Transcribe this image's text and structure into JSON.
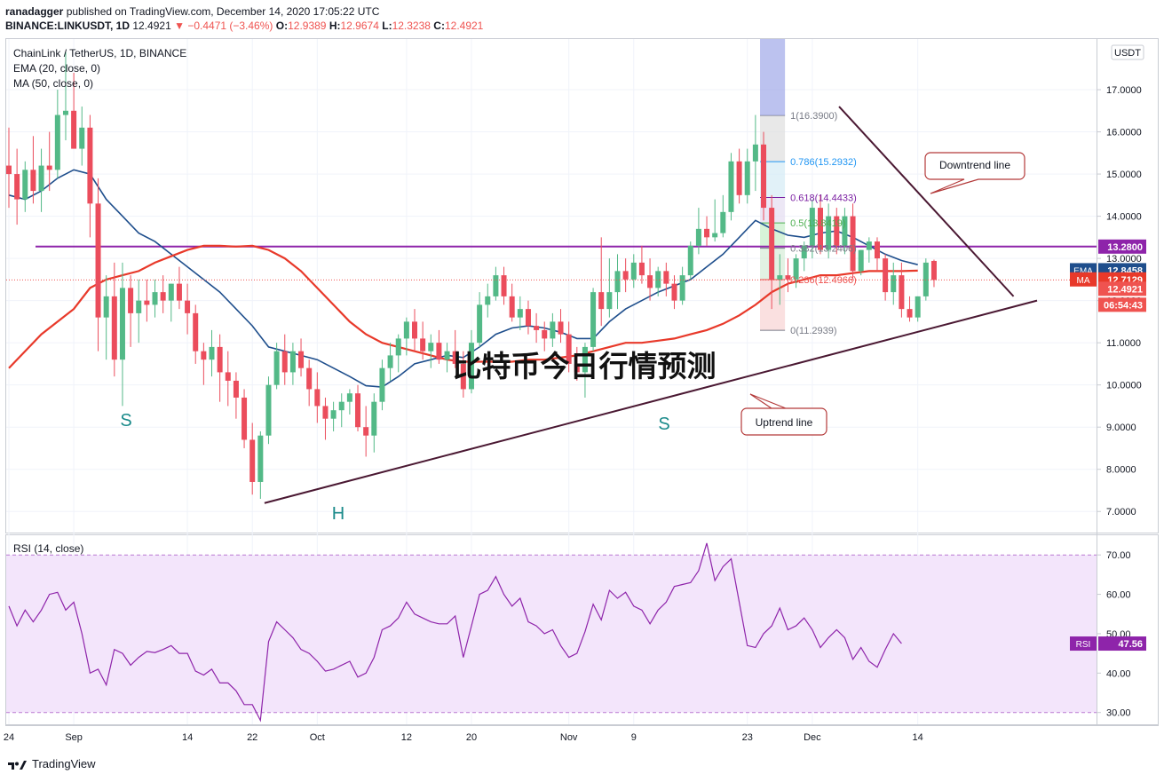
{
  "header": {
    "publisher": "ranadagger",
    "published_text": "published on TradingView.com, December 14, 2020 17:05:22 UTC",
    "symbol": "BINANCE:LINKUSDT, 1D",
    "last": "12.4921",
    "change": "−0.4471 (−3.46%)",
    "o_label": "O:",
    "o": "12.9389",
    "h_label": "H:",
    "h": "12.9674",
    "l_label": "L:",
    "l": "12.3238",
    "c_label": "C:",
    "c": "12.4921"
  },
  "legend": {
    "title": "ChainLink / TetherUS, 1D, BINANCE",
    "ema": "EMA (20, close, 0)",
    "ma": "MA (50, close, 0)",
    "rsi": "RSI (14, close)"
  },
  "currency": "USDT",
  "watermark": "比特币今日行情预测",
  "footer_logo": "TradingView",
  "colors": {
    "up": "#53b987",
    "down": "#eb4d5c",
    "ema": "#1e4e8c",
    "ma": "#e8392a",
    "horizontal": "#8e24aa",
    "trendline": "#4a1832",
    "rsi_line": "#8e24aa",
    "rsi_band": "#f3e5fb",
    "callout": "#b33939",
    "pattern_label": "#1a8a8a"
  },
  "chart_data": {
    "type": "candlestick",
    "y_range": [
      6.5,
      18.2
    ],
    "price_ticks": [
      "17.0000",
      "16.0000",
      "15.0000",
      "14.0000",
      "13.0000",
      "12.0000",
      "11.0000",
      "10.0000",
      "9.0000",
      "8.0000",
      "7.0000"
    ],
    "time_labels": [
      {
        "t": 0,
        "label": "24"
      },
      {
        "t": 8,
        "label": "Sep"
      },
      {
        "t": 22,
        "label": "14"
      },
      {
        "t": 30,
        "label": "22"
      },
      {
        "t": 38,
        "label": "Oct"
      },
      {
        "t": 49,
        "label": "12"
      },
      {
        "t": 57,
        "label": "20"
      },
      {
        "t": 69,
        "label": "Nov"
      },
      {
        "t": 77,
        "label": "9"
      },
      {
        "t": 91,
        "label": "23"
      },
      {
        "t": 99,
        "label": "Dec"
      },
      {
        "t": 112,
        "label": "14"
      }
    ],
    "candles": [
      [
        15.2,
        16.1,
        14.2,
        15.0
      ],
      [
        15.0,
        15.6,
        13.8,
        14.4
      ],
      [
        14.4,
        15.3,
        14.1,
        15.1
      ],
      [
        15.1,
        15.9,
        14.3,
        14.6
      ],
      [
        14.6,
        15.6,
        14.1,
        15.2
      ],
      [
        15.2,
        16.0,
        14.6,
        15.1
      ],
      [
        15.1,
        17.0,
        14.9,
        16.4
      ],
      [
        16.4,
        17.9,
        15.8,
        16.5
      ],
      [
        16.5,
        17.4,
        15.6,
        15.6
      ],
      [
        15.6,
        16.6,
        15.2,
        16.1
      ],
      [
        16.1,
        16.4,
        13.5,
        14.3
      ],
      [
        14.3,
        14.9,
        10.8,
        11.6
      ],
      [
        11.6,
        12.6,
        10.6,
        12.1
      ],
      [
        12.1,
        12.9,
        10.2,
        10.6
      ],
      [
        10.6,
        12.9,
        9.5,
        12.3
      ],
      [
        12.3,
        12.6,
        10.9,
        11.7
      ],
      [
        11.7,
        12.5,
        11.0,
        12.0
      ],
      [
        12.0,
        12.5,
        11.5,
        11.9
      ],
      [
        11.9,
        12.5,
        11.6,
        12.2
      ],
      [
        12.2,
        12.6,
        11.7,
        12.0
      ],
      [
        12.0,
        12.4,
        11.5,
        12.4
      ],
      [
        12.4,
        12.8,
        11.8,
        12.0
      ],
      [
        12.0,
        12.4,
        11.2,
        11.7
      ],
      [
        11.7,
        11.9,
        10.5,
        10.8
      ],
      [
        10.8,
        11.0,
        10.0,
        10.6
      ],
      [
        10.6,
        11.3,
        10.2,
        10.9
      ],
      [
        10.9,
        11.2,
        9.6,
        10.3
      ],
      [
        10.3,
        10.8,
        9.5,
        10.1
      ],
      [
        10.1,
        10.3,
        9.2,
        9.7
      ],
      [
        9.7,
        9.9,
        8.5,
        8.7
      ],
      [
        8.7,
        9.1,
        7.4,
        7.7
      ],
      [
        7.7,
        8.9,
        7.3,
        8.8
      ],
      [
        8.8,
        10.2,
        8.6,
        10.0
      ],
      [
        10.0,
        11.0,
        9.9,
        10.8
      ],
      [
        10.8,
        11.2,
        10.0,
        10.3
      ],
      [
        10.3,
        11.0,
        10.0,
        10.8
      ],
      [
        10.8,
        11.1,
        10.2,
        10.4
      ],
      [
        10.4,
        10.6,
        9.5,
        9.9
      ],
      [
        9.9,
        10.3,
        9.1,
        9.5
      ],
      [
        9.5,
        9.7,
        8.7,
        9.2
      ],
      [
        9.2,
        9.6,
        8.9,
        9.4
      ],
      [
        9.4,
        9.8,
        9.0,
        9.6
      ],
      [
        9.6,
        9.9,
        9.3,
        9.8
      ],
      [
        9.8,
        10.0,
        8.9,
        9.0
      ],
      [
        9.0,
        9.5,
        8.3,
        8.8
      ],
      [
        8.8,
        9.8,
        8.4,
        9.6
      ],
      [
        9.6,
        10.6,
        9.4,
        10.4
      ],
      [
        10.4,
        11.0,
        10.1,
        10.7
      ],
      [
        10.7,
        11.2,
        10.3,
        11.1
      ],
      [
        11.1,
        11.6,
        10.7,
        11.5
      ],
      [
        11.5,
        11.8,
        10.8,
        11.1
      ],
      [
        11.1,
        11.5,
        10.6,
        10.8
      ],
      [
        10.8,
        11.2,
        10.4,
        11.0
      ],
      [
        11.0,
        11.3,
        10.5,
        10.6
      ],
      [
        10.6,
        11.0,
        10.3,
        10.8
      ],
      [
        10.8,
        11.3,
        10.4,
        10.5
      ],
      [
        10.5,
        10.8,
        9.7,
        9.9
      ],
      [
        9.9,
        11.3,
        9.8,
        11.0
      ],
      [
        11.0,
        12.2,
        10.9,
        11.9
      ],
      [
        11.9,
        12.4,
        11.6,
        12.1
      ],
      [
        12.1,
        12.8,
        12.0,
        12.6
      ],
      [
        12.6,
        12.8,
        11.9,
        12.1
      ],
      [
        12.1,
        12.4,
        11.5,
        11.6
      ],
      [
        11.6,
        12.1,
        11.3,
        11.8
      ],
      [
        11.8,
        12.0,
        11.2,
        11.4
      ],
      [
        11.4,
        11.7,
        11.0,
        11.3
      ],
      [
        11.3,
        11.5,
        10.8,
        11.1
      ],
      [
        11.1,
        11.7,
        10.9,
        11.5
      ],
      [
        11.5,
        11.8,
        11.0,
        11.2
      ],
      [
        11.2,
        11.5,
        10.3,
        10.5
      ],
      [
        10.5,
        10.9,
        10.1,
        10.3
      ],
      [
        10.3,
        11.0,
        9.7,
        10.9
      ],
      [
        10.9,
        12.3,
        10.8,
        12.2
      ],
      [
        12.2,
        13.5,
        11.4,
        11.8
      ],
      [
        11.8,
        13.0,
        11.6,
        12.2
      ],
      [
        12.2,
        13.1,
        11.8,
        12.7
      ],
      [
        12.7,
        13.0,
        12.2,
        12.5
      ],
      [
        12.5,
        13.1,
        12.3,
        12.9
      ],
      [
        12.9,
        13.3,
        12.4,
        12.6
      ],
      [
        12.6,
        13.0,
        12.0,
        12.3
      ],
      [
        12.3,
        12.8,
        12.1,
        12.7
      ],
      [
        12.7,
        12.9,
        12.1,
        12.4
      ],
      [
        12.4,
        12.6,
        11.8,
        12.0
      ],
      [
        12.0,
        12.8,
        11.9,
        12.6
      ],
      [
        12.6,
        13.4,
        12.5,
        13.3
      ],
      [
        13.3,
        14.2,
        13.1,
        13.7
      ],
      [
        13.7,
        14.0,
        13.3,
        13.5
      ],
      [
        13.5,
        14.4,
        13.4,
        13.6
      ],
      [
        13.6,
        14.5,
        13.5,
        14.1
      ],
      [
        14.1,
        15.5,
        13.9,
        15.3
      ],
      [
        15.3,
        15.6,
        14.3,
        14.5
      ],
      [
        14.5,
        15.6,
        14.3,
        15.3
      ],
      [
        15.3,
        16.4,
        14.6,
        15.7
      ],
      [
        15.7,
        16.0,
        13.9,
        14.2
      ],
      [
        14.2,
        14.5,
        11.8,
        12.5
      ],
      [
        12.5,
        13.1,
        11.9,
        12.6
      ],
      [
        12.6,
        13.0,
        12.2,
        12.5
      ],
      [
        12.5,
        13.1,
        12.3,
        13.0
      ],
      [
        13.0,
        13.4,
        12.7,
        13.3
      ],
      [
        13.3,
        14.4,
        13.0,
        14.2
      ],
      [
        14.2,
        14.5,
        13.1,
        13.2
      ],
      [
        13.2,
        14.3,
        13.0,
        14.0
      ],
      [
        14.0,
        14.2,
        13.1,
        13.3
      ],
      [
        13.3,
        14.2,
        13.1,
        14.0
      ],
      [
        14.0,
        14.3,
        12.5,
        12.7
      ],
      [
        12.7,
        13.2,
        12.6,
        13.2
      ],
      [
        13.2,
        13.5,
        12.9,
        13.4
      ],
      [
        13.4,
        13.5,
        12.7,
        13.0
      ],
      [
        13.0,
        13.1,
        12.0,
        12.2
      ],
      [
        12.2,
        12.9,
        11.9,
        12.6
      ],
      [
        12.6,
        12.9,
        11.6,
        11.8
      ],
      [
        11.8,
        12.1,
        11.5,
        11.6
      ],
      [
        11.6,
        12.1,
        11.5,
        12.1
      ],
      [
        12.1,
        13.0,
        12.0,
        12.9
      ],
      [
        12.94,
        12.97,
        12.32,
        12.49
      ]
    ],
    "ema20": [
      [
        0,
        14.5
      ],
      [
        2,
        14.4
      ],
      [
        4,
        14.6
      ],
      [
        6,
        14.9
      ],
      [
        8,
        15.1
      ],
      [
        10,
        15.0
      ],
      [
        12,
        14.4
      ],
      [
        14,
        14.0
      ],
      [
        16,
        13.6
      ],
      [
        18,
        13.4
      ],
      [
        20,
        13.1
      ],
      [
        22,
        12.8
      ],
      [
        24,
        12.5
      ],
      [
        26,
        12.2
      ],
      [
        28,
        11.8
      ],
      [
        30,
        11.4
      ],
      [
        32,
        10.9
      ],
      [
        34,
        10.8
      ],
      [
        36,
        10.7
      ],
      [
        38,
        10.6
      ],
      [
        40,
        10.4
      ],
      [
        42,
        10.2
      ],
      [
        44,
        9.98
      ],
      [
        46,
        9.95
      ],
      [
        48,
        10.2
      ],
      [
        50,
        10.5
      ],
      [
        52,
        10.6
      ],
      [
        54,
        10.7
      ],
      [
        56,
        10.65
      ],
      [
        58,
        10.9
      ],
      [
        60,
        11.2
      ],
      [
        62,
        11.35
      ],
      [
        64,
        11.4
      ],
      [
        66,
        11.35
      ],
      [
        68,
        11.25
      ],
      [
        70,
        11.1
      ],
      [
        72,
        11.1
      ],
      [
        74,
        11.5
      ],
      [
        76,
        11.8
      ],
      [
        78,
        12.0
      ],
      [
        80,
        12.2
      ],
      [
        82,
        12.35
      ],
      [
        84,
        12.5
      ],
      [
        86,
        12.8
      ],
      [
        88,
        13.1
      ],
      [
        90,
        13.5
      ],
      [
        92,
        13.9
      ],
      [
        94,
        13.7
      ],
      [
        96,
        13.55
      ],
      [
        98,
        13.5
      ],
      [
        100,
        13.6
      ],
      [
        102,
        13.65
      ],
      [
        104,
        13.5
      ],
      [
        106,
        13.3
      ],
      [
        108,
        13.1
      ],
      [
        110,
        12.95
      ],
      [
        112,
        12.85
      ]
    ],
    "ma50": [
      [
        0,
        10.4
      ],
      [
        4,
        11.2
      ],
      [
        8,
        11.8
      ],
      [
        10,
        12.3
      ],
      [
        12,
        12.5
      ],
      [
        14,
        12.6
      ],
      [
        16,
        12.7
      ],
      [
        18,
        12.9
      ],
      [
        20,
        13.05
      ],
      [
        22,
        13.2
      ],
      [
        24,
        13.3
      ],
      [
        26,
        13.3
      ],
      [
        28,
        13.28
      ],
      [
        30,
        13.3
      ],
      [
        32,
        13.2
      ],
      [
        34,
        13.0
      ],
      [
        36,
        12.7
      ],
      [
        38,
        12.3
      ],
      [
        40,
        11.9
      ],
      [
        42,
        11.5
      ],
      [
        44,
        11.2
      ],
      [
        46,
        11.0
      ],
      [
        48,
        10.9
      ],
      [
        50,
        10.8
      ],
      [
        52,
        10.7
      ],
      [
        54,
        10.6
      ],
      [
        56,
        10.55
      ],
      [
        58,
        10.55
      ],
      [
        60,
        10.55
      ],
      [
        62,
        10.55
      ],
      [
        64,
        10.6
      ],
      [
        66,
        10.6
      ],
      [
        68,
        10.65
      ],
      [
        70,
        10.7
      ],
      [
        72,
        10.8
      ],
      [
        74,
        10.9
      ],
      [
        76,
        11.0
      ],
      [
        78,
        11.0
      ],
      [
        80,
        11.05
      ],
      [
        82,
        11.1
      ],
      [
        84,
        11.2
      ],
      [
        86,
        11.3
      ],
      [
        88,
        11.45
      ],
      [
        90,
        11.65
      ],
      [
        92,
        11.9
      ],
      [
        94,
        12.2
      ],
      [
        96,
        12.4
      ],
      [
        98,
        12.5
      ],
      [
        100,
        12.6
      ],
      [
        102,
        12.6
      ],
      [
        104,
        12.65
      ],
      [
        106,
        12.7
      ],
      [
        108,
        12.7
      ],
      [
        110,
        12.7
      ],
      [
        112,
        12.71
      ]
    ],
    "rsi": [
      57,
      52,
      56,
      53,
      56,
      60,
      60.5,
      56,
      58,
      50,
      40,
      41,
      37,
      46,
      45,
      42,
      44,
      45.5,
      45.2,
      46,
      47,
      45,
      45,
      40.5,
      39.5,
      41,
      37.5,
      37.5,
      35.5,
      32,
      32,
      28,
      48,
      53,
      51,
      49,
      46,
      45,
      43,
      40.5,
      41,
      42,
      43,
      39,
      40,
      44,
      51,
      52,
      54,
      58,
      55,
      54,
      53,
      52.5,
      52.5,
      54.5,
      44,
      52,
      60,
      61,
      64.5,
      60,
      57,
      59,
      53,
      52,
      50,
      51,
      47,
      44,
      45,
      50.5,
      57.5,
      53.5,
      61,
      59,
      60.5,
      57,
      56,
      52.5,
      56,
      58,
      62,
      62.5,
      63,
      66,
      73,
      63.5,
      67,
      69,
      58,
      47,
      46.5,
      50,
      52,
      56.5,
      51,
      52,
      54,
      51,
      46.5,
      49,
      51,
      49,
      43.5,
      46.5,
      43,
      41.5,
      46,
      50,
      47.5
    ],
    "rsi_range": [
      27,
      75
    ],
    "rsi_ticks": [
      "70.00",
      "60.00",
      "50.00",
      "40.00",
      "30.00"
    ],
    "horizontal_level": 13.28,
    "price_labels": {
      "level": "13.2800",
      "ema_tag": "EMA",
      "ema": "12.8458",
      "ma_tag": "MA",
      "ma": "12.7129",
      "close": "12.4921",
      "countdown": "06:54:43",
      "rsi_tag": "RSI",
      "rsi": "47.56"
    },
    "fib_levels": [
      {
        "value": 16.39,
        "label": "1(16.3900)"
      },
      {
        "value": 15.2932,
        "label": "0.786(15.2932)"
      },
      {
        "value": 14.4433,
        "label": "0.618(14.4433)"
      },
      {
        "value": 13.8419,
        "label": "0.5(13.8419)"
      },
      {
        "value": 13.2406,
        "label": "0.382(13.2406)"
      },
      {
        "value": 12.4966,
        "label": "0.236(12.4966)"
      },
      {
        "value": 11.2939,
        "label": "0(11.2939)"
      }
    ],
    "annotations": {
      "downtrend": "Downtrend line",
      "uptrend": "Uptrend line",
      "s_left": "S",
      "head": "H",
      "s_right": "S"
    }
  }
}
